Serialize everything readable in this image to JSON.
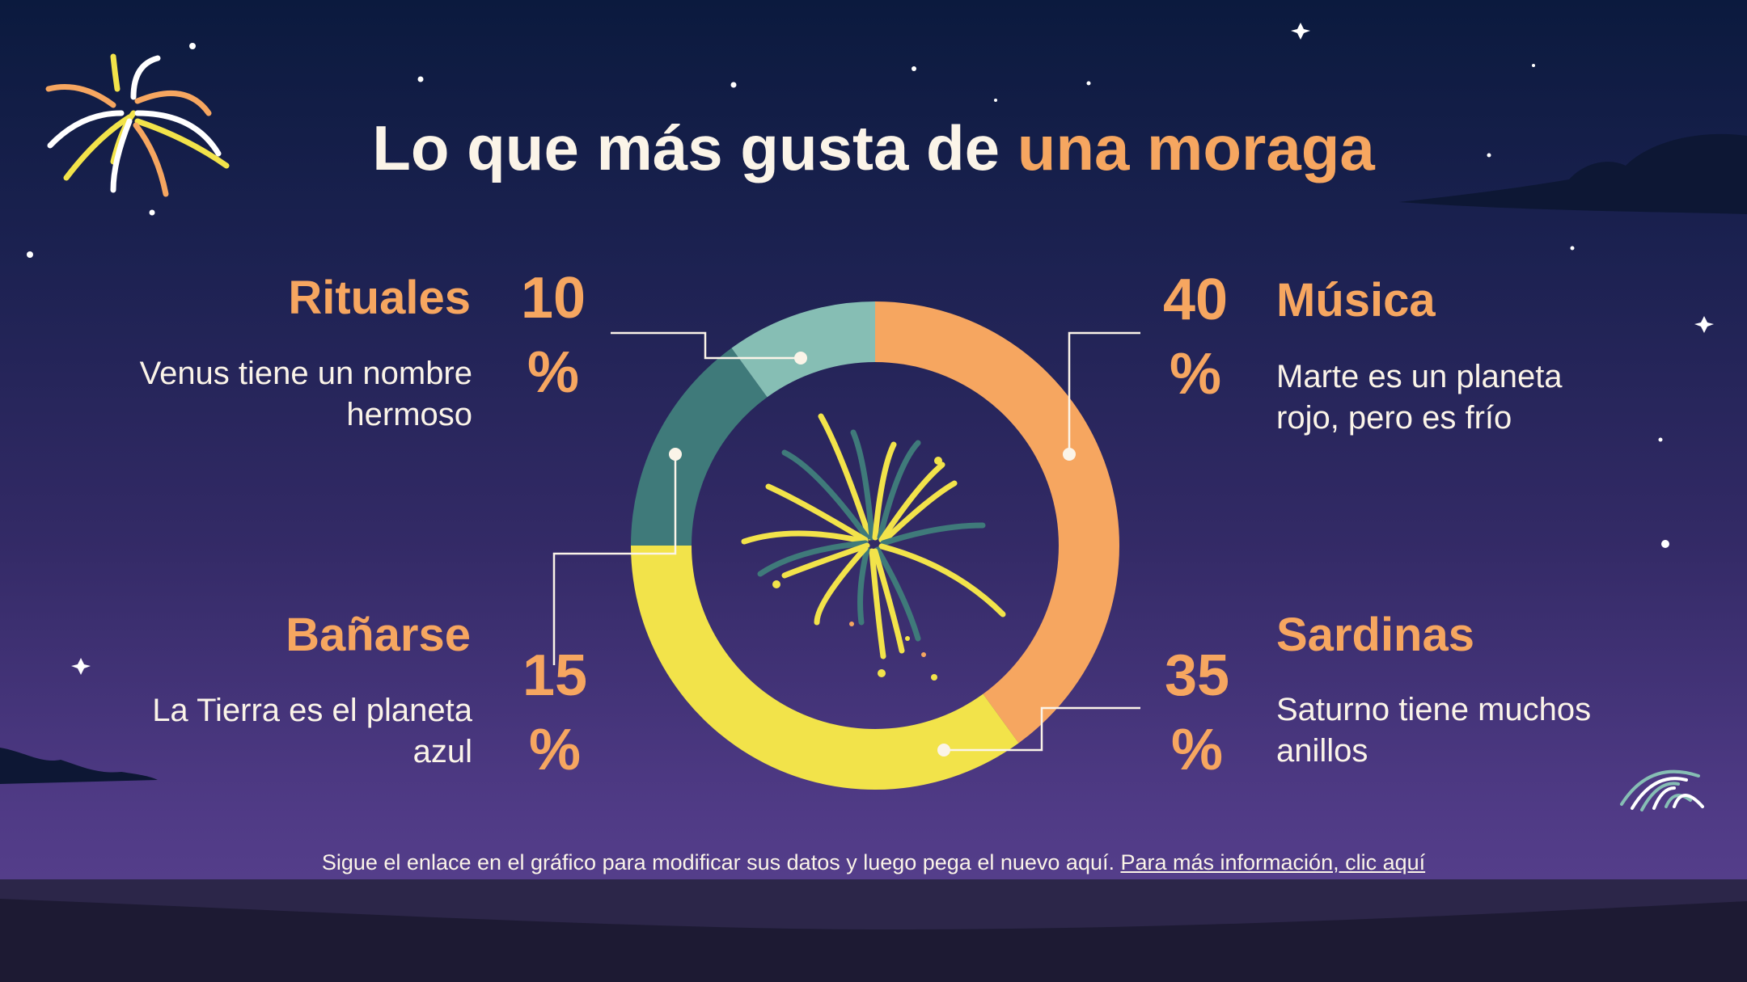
{
  "title": {
    "main": "Lo que más gusta de ",
    "highlight": "una moraga"
  },
  "colors": {
    "accent": "#f6a660",
    "yellow": "#f2e34a",
    "teal_dark": "#3f7a7a",
    "teal_light": "#86beb4",
    "text": "#fbf4e8"
  },
  "segments": [
    {
      "label": "Rituales",
      "value": "10",
      "unit": "%",
      "description": "Venus tiene un nombre hermoso"
    },
    {
      "label": "Música",
      "value": "40",
      "unit": "%",
      "description": "Marte es un planeta rojo, pero es frío"
    },
    {
      "label": "Bañarse",
      "value": "15",
      "unit": "%",
      "description": "La Tierra es el planeta azul"
    },
    {
      "label": "Sardinas",
      "value": "35",
      "unit": "%",
      "description": "Saturno tiene muchos anillos"
    }
  ],
  "chart_data": {
    "type": "pie",
    "categories": [
      "Música",
      "Sardinas",
      "Bañarse",
      "Rituales"
    ],
    "values": [
      40,
      35,
      15,
      10
    ],
    "colors": [
      "#f6a660",
      "#f2e34a",
      "#3f7a7a",
      "#86beb4"
    ]
  },
  "footer": {
    "text": "Sigue el enlace en el gráfico para modificar sus datos y luego pega el nuevo aquí. ",
    "link": "Para más información, clic aquí"
  }
}
